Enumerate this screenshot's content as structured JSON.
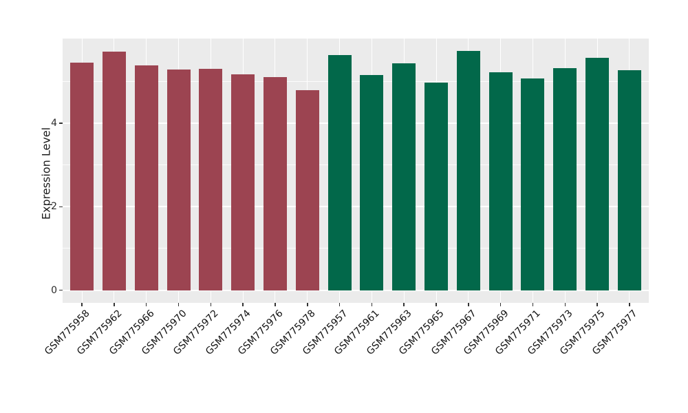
{
  "chart_data": {
    "type": "bar",
    "title": "",
    "xlabel": "",
    "ylabel": "Expression Level",
    "categories": [
      "GSM775958",
      "GSM775962",
      "GSM775966",
      "GSM775970",
      "GSM775972",
      "GSM775974",
      "GSM775976",
      "GSM775978",
      "GSM775957",
      "GSM775961",
      "GSM775963",
      "GSM775965",
      "GSM775967",
      "GSM775969",
      "GSM775971",
      "GSM775973",
      "GSM775975",
      "GSM775977"
    ],
    "values": [
      5.46,
      5.72,
      5.39,
      5.29,
      5.31,
      5.17,
      5.1,
      4.8,
      5.64,
      5.16,
      5.43,
      4.98,
      5.73,
      5.23,
      5.07,
      5.32,
      5.57,
      5.28
    ],
    "groups": [
      "red",
      "red",
      "red",
      "red",
      "red",
      "red",
      "red",
      "red",
      "green",
      "green",
      "green",
      "green",
      "green",
      "green",
      "green",
      "green",
      "green",
      "green"
    ],
    "group_colors": {
      "red": "#9C4451",
      "green": "#02684A"
    },
    "ytick_values": [
      0,
      2,
      4
    ],
    "ytick_labels": [
      "0",
      "2",
      "4"
    ],
    "minor_grid_values": [
      1,
      3,
      5
    ],
    "ylim_display": [
      -0.3,
      6.03
    ],
    "panel_bg": "#EBEBEB",
    "grid_color": "#FFFFFF",
    "axis_text_color": "#1A1A1A",
    "x_label_angle_deg": 45,
    "legend": "none",
    "grid": "on"
  }
}
